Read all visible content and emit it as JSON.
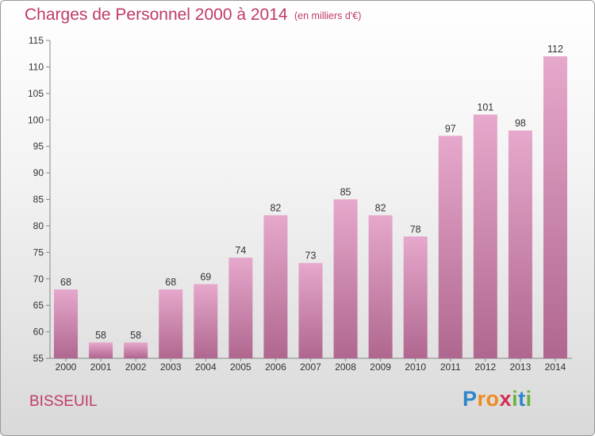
{
  "header": {
    "title": "Charges de Personnel 2000 à 2014",
    "subtitle": "(en milliers d'€)"
  },
  "commune": "BISSEUIL",
  "logo": {
    "text": "Proxiti",
    "letters": [
      {
        "ch": "P",
        "color": "#2f86c9"
      },
      {
        "ch": "r",
        "color": "#f08a1c"
      },
      {
        "ch": "o",
        "color": "#f08a1c"
      },
      {
        "ch": "x",
        "color": "#d22e4f"
      },
      {
        "ch": "i",
        "color": "#6ab33c"
      },
      {
        "ch": "t",
        "color": "#2f86c9"
      },
      {
        "ch": "i",
        "color": "#6ab33c"
      }
    ]
  },
  "colors": {
    "bar_light": "#e6a8cc",
    "bar_dark": "#b0678f",
    "title": "#c03a6a"
  },
  "chart_data": {
    "type": "bar",
    "title": "Charges de Personnel 2000 à 2014",
    "subtitle": "(en milliers d'€)",
    "categories": [
      "2000",
      "2001",
      "2002",
      "2003",
      "2004",
      "2005",
      "2006",
      "2007",
      "2008",
      "2009",
      "2010",
      "2011",
      "2012",
      "2013",
      "2014"
    ],
    "values": [
      68,
      58,
      58,
      68,
      69,
      74,
      82,
      73,
      85,
      82,
      78,
      97,
      101,
      98,
      112
    ],
    "ylim": [
      55,
      115
    ],
    "yticks": [
      55,
      60,
      65,
      70,
      75,
      80,
      85,
      90,
      95,
      100,
      105,
      110,
      115
    ],
    "grid": false,
    "data_labels": true
  }
}
